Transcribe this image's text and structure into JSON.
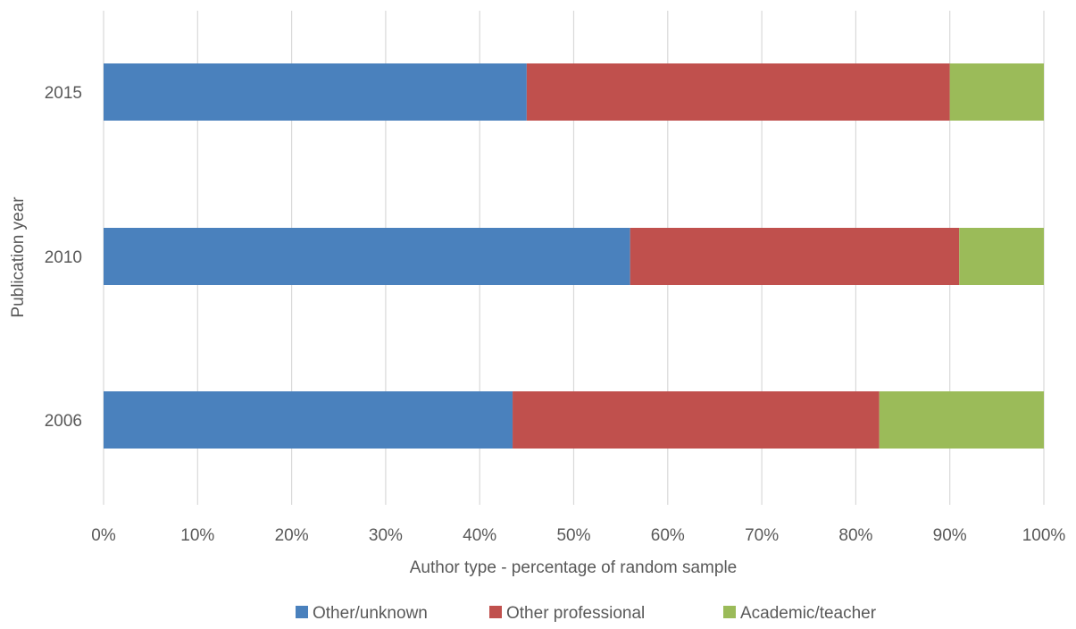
{
  "chart_data": {
    "type": "bar",
    "orientation": "horizontal",
    "stacked": true,
    "percent_stacked": true,
    "categories": [
      "2015",
      "2010",
      "2006"
    ],
    "series": [
      {
        "name": "Other/unknown",
        "color": "#4a81bd",
        "values": [
          45,
          56,
          43.5
        ]
      },
      {
        "name": "Other professional",
        "color": "#c0504d",
        "values": [
          45,
          35,
          39
        ]
      },
      {
        "name": "Academic/teacher",
        "color": "#9bbb59",
        "values": [
          10,
          9,
          17.5
        ]
      }
    ],
    "xlabel": "Author type - percentage of random sample",
    "ylabel": "Publication year",
    "xlim": [
      0,
      100
    ],
    "x_ticks": [
      "0%",
      "10%",
      "20%",
      "30%",
      "40%",
      "50%",
      "60%",
      "70%",
      "80%",
      "90%",
      "100%"
    ],
    "grid": true,
    "legend_position": "bottom"
  },
  "colors": {
    "grid": "#d9d9d9",
    "text": "#595959"
  }
}
